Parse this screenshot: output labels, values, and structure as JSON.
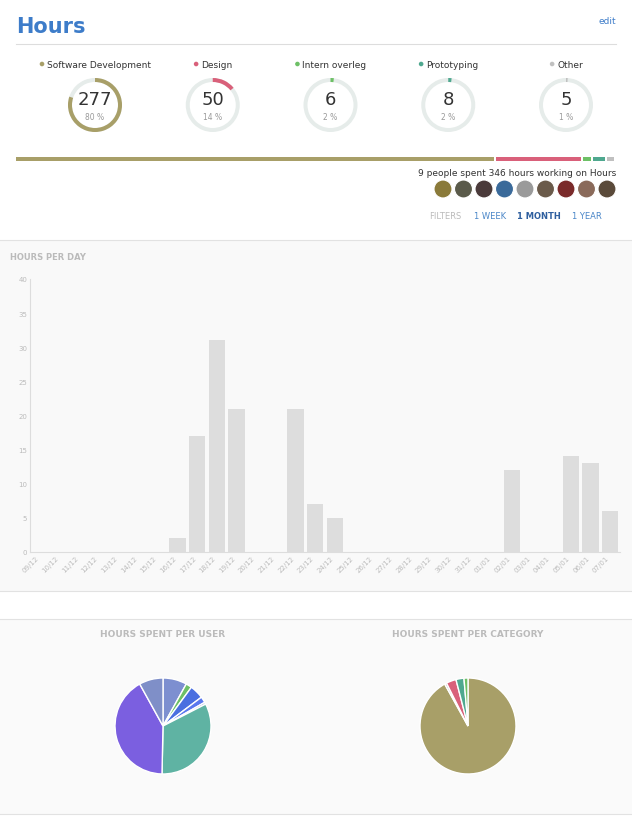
{
  "header": {
    "title": "Hours",
    "edit": "edit"
  },
  "summary": {
    "categories": [
      {
        "name": "Software Development",
        "color": "#a89f68",
        "hours": 277,
        "percent": {
          "value": 80,
          "label": "80 %"
        }
      },
      {
        "name": "Design",
        "color": "#d9607a",
        "hours": 50,
        "percent": {
          "value": 14,
          "label": "14 %"
        }
      },
      {
        "name": "Intern overleg",
        "color": "#6dc066",
        "hours": 6,
        "percent": {
          "value": 2,
          "label": "2 %"
        }
      },
      {
        "name": "Prototyping",
        "color": "#4fa88f",
        "hours": 8,
        "percent": {
          "value": 2,
          "label": "2 %"
        }
      },
      {
        "name": "Other",
        "color": "#c0c0c0",
        "hours": 5,
        "percent": {
          "value": 1,
          "label": "1 %"
        }
      }
    ],
    "text": "9 people spent 346 hours working on Hours"
  },
  "filters": {
    "label": "FILTERS",
    "options": [
      "1 WEEK",
      "1 MONTH",
      "1 YEAR"
    ],
    "selected": "1 MONTH"
  },
  "chart_data": [
    {
      "type": "bar",
      "title": "HOURS PER DAY",
      "categories": [
        "09/12",
        "10/12",
        "11/12",
        "12/12",
        "13/12",
        "14/12",
        "15/12",
        "16/12",
        "17/12",
        "18/12",
        "19/12",
        "20/12",
        "21/12",
        "22/12",
        "23/12",
        "24/12",
        "25/12",
        "26/12",
        "27/12",
        "28/12",
        "29/12",
        "30/12",
        "31/12",
        "01/01",
        "02/01",
        "03/01",
        "04/01",
        "05/01",
        "06/01",
        "07/01"
      ],
      "values": [
        0,
        0,
        0,
        0,
        0,
        0,
        0,
        2,
        17,
        31,
        21,
        0,
        0,
        21,
        7,
        5,
        0,
        0,
        0,
        0,
        0,
        0,
        0,
        0,
        12,
        0,
        0,
        14,
        13,
        6
      ],
      "color": "#dddddd",
      "ylim": [
        0,
        40
      ],
      "yticks": [
        0,
        5,
        10,
        15,
        20,
        25,
        30,
        35,
        40
      ],
      "grid": false
    },
    {
      "type": "pie",
      "title": "HOURS SPENT PER USER",
      "values": [
        12,
        3,
        7,
        3,
        1,
        49,
        62,
        12
      ],
      "colors": [
        "#7d8fd0",
        "#6dc066",
        "#4a6fe0",
        "#5a78ee",
        "#9aa8d8",
        "#5fb3a3",
        "#7b5fe0",
        "#7f8fc8"
      ]
    },
    {
      "type": "pie",
      "title": "HOURS SPENT PER CATEGORY",
      "values": [
        137,
        1,
        5,
        4,
        2
      ],
      "colors": [
        "#a89f68",
        "#c0c0c0",
        "#d9607a",
        "#4fa88f",
        "#6dc066"
      ]
    }
  ]
}
